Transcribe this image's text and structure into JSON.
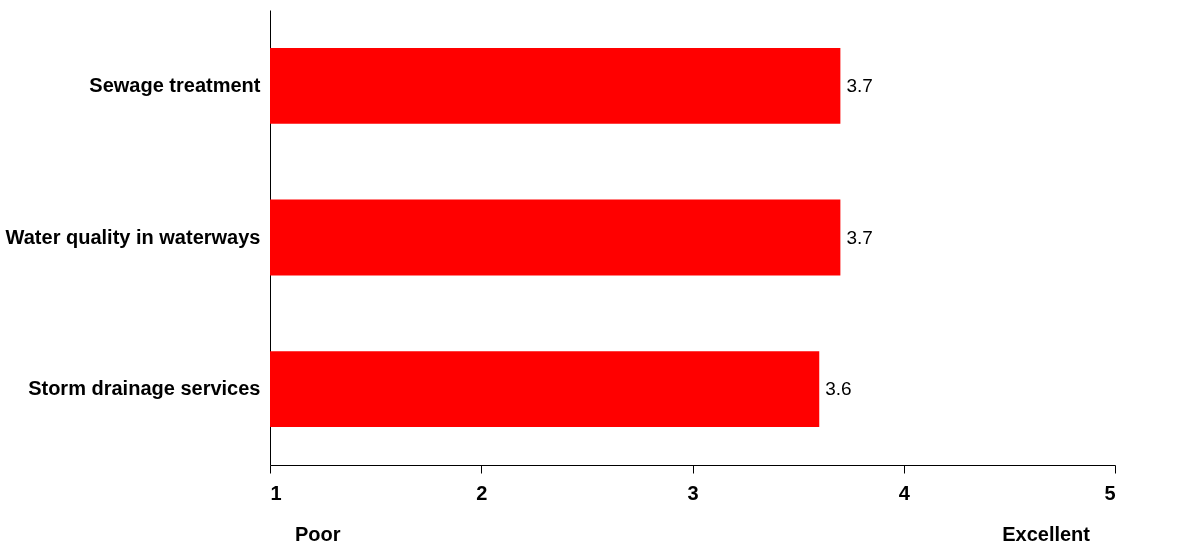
{
  "chart_data": {
    "type": "bar",
    "orientation": "horizontal",
    "categories": [
      "Sewage treatment",
      "Water quality in waterways",
      "Storm drainage services"
    ],
    "values": [
      3.7,
      3.7,
      3.6
    ],
    "color": "#ff0000",
    "xlim": [
      1,
      5
    ],
    "xticks": [
      1,
      2,
      3,
      4,
      5
    ],
    "grid": false,
    "data_labels": true,
    "annotations": [
      "Poor",
      "Excellent"
    ]
  }
}
